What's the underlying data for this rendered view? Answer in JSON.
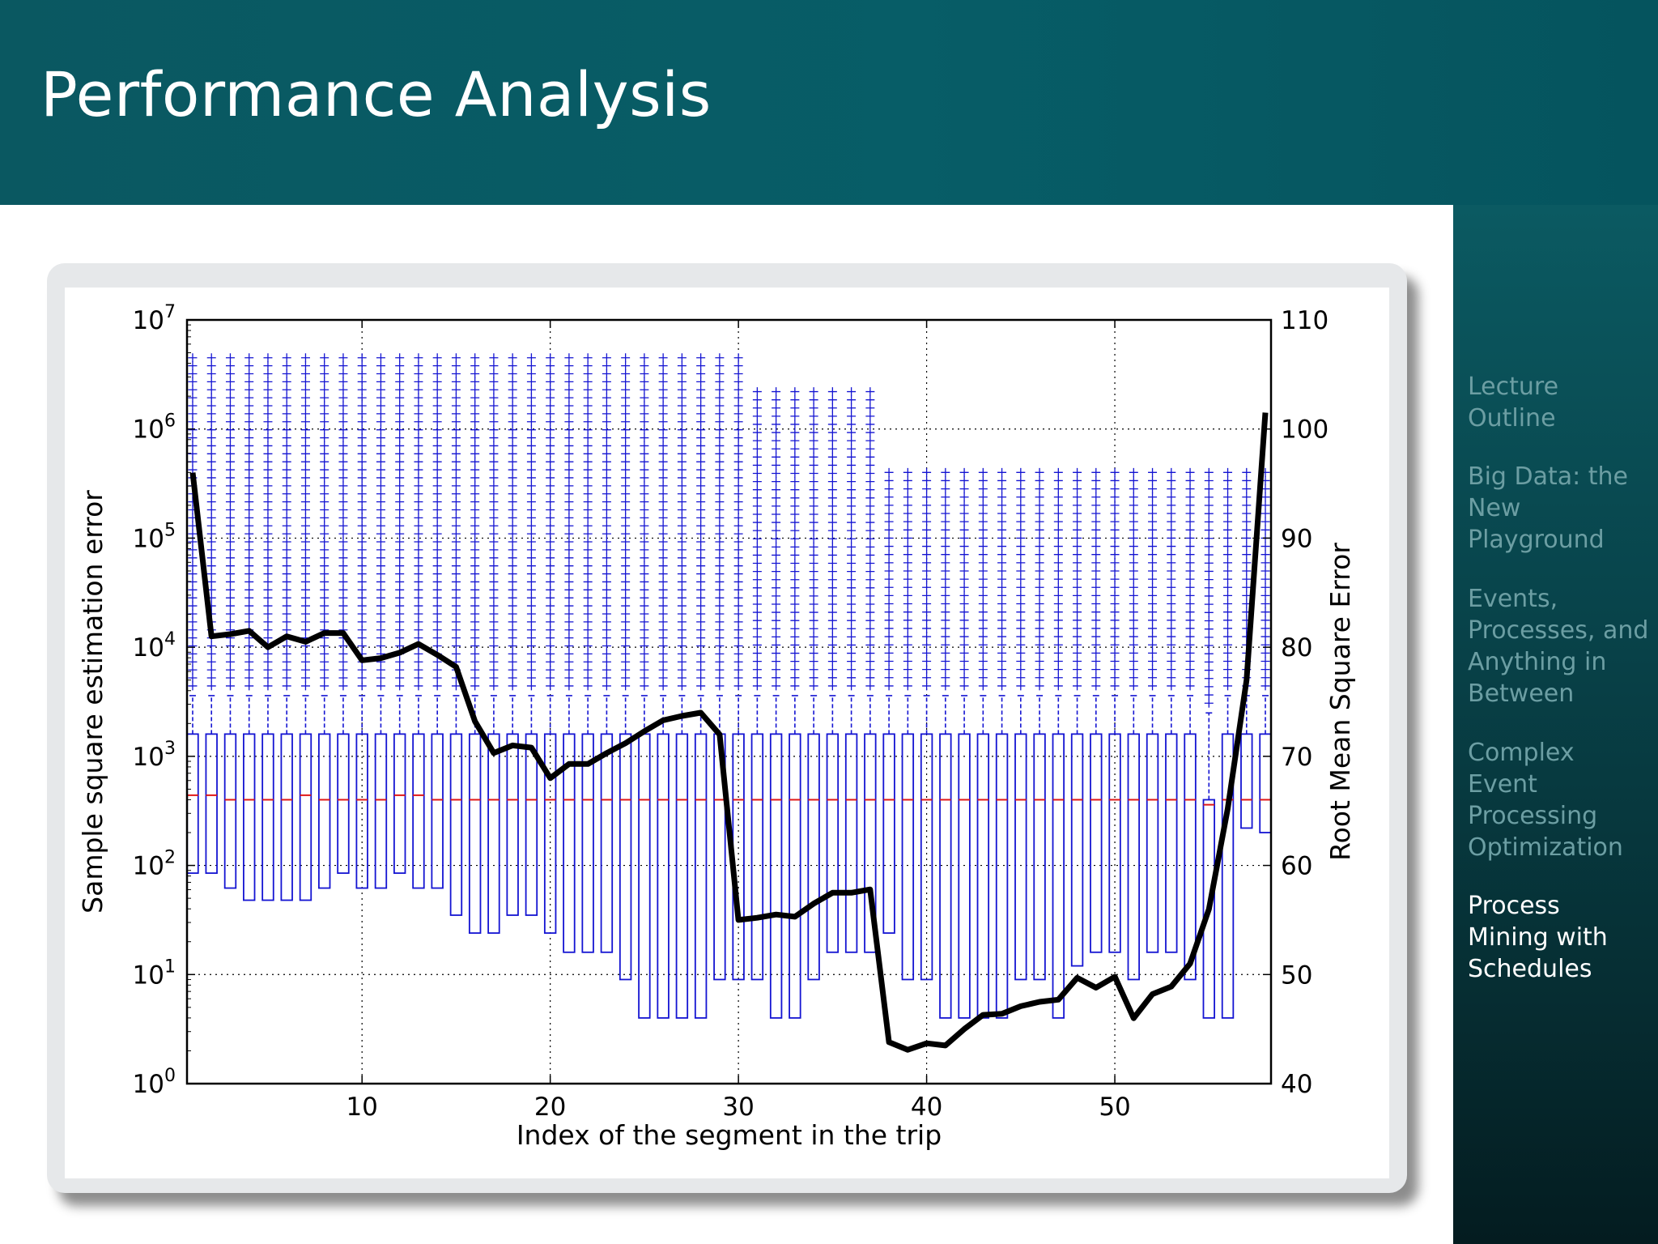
{
  "slide": {
    "title": "Performance Analysis"
  },
  "sidebar": {
    "items": [
      {
        "label": "Lecture\nOutline",
        "active": false
      },
      {
        "label": "Big Data: the\nNew\nPlayground",
        "active": false
      },
      {
        "label": "Events,\nProcesses, and\nAnything in\nBetween",
        "active": false
      },
      {
        "label": "Complex\nEvent\nProcessing\nOptimization",
        "active": false
      },
      {
        "label": "Process\nMining with\nSchedules",
        "active": true
      }
    ]
  },
  "colors": {
    "header": "#0a5861",
    "box": "#1414d2",
    "median": "#e01818",
    "rmse_line": "#000000"
  },
  "chart_data": {
    "type": "box",
    "xlabel": "Index of the segment in the trip",
    "ylabel_left": "Sample square estimation error",
    "ylabel_right": "Root Mean Square Error",
    "x_ticks": [
      10,
      20,
      30,
      40,
      50
    ],
    "xlim": [
      0.7,
      58.3
    ],
    "y_left_scale": "log",
    "y_left_lim": [
      1,
      10000000
    ],
    "y_left_ticks": [
      "10^0",
      "10^1",
      "10^2",
      "10^3",
      "10^4",
      "10^5",
      "10^6",
      "10^7"
    ],
    "y_right_lim": [
      40,
      110
    ],
    "y_right_ticks": [
      40,
      50,
      60,
      70,
      80,
      90,
      100,
      110
    ],
    "grid": true,
    "boxes": {
      "x": [
        1,
        2,
        3,
        4,
        5,
        6,
        7,
        8,
        9,
        10,
        11,
        12,
        13,
        14,
        15,
        16,
        17,
        18,
        19,
        20,
        21,
        22,
        23,
        24,
        25,
        26,
        27,
        28,
        29,
        30,
        31,
        32,
        33,
        34,
        35,
        36,
        37,
        38,
        39,
        40,
        41,
        42,
        43,
        44,
        45,
        46,
        47,
        48,
        49,
        50,
        51,
        52,
        53,
        54,
        55,
        56,
        57,
        58
      ],
      "q1": [
        85,
        85,
        62,
        48,
        48,
        48,
        48,
        62,
        85,
        62,
        62,
        85,
        62,
        62,
        35,
        24,
        24,
        35,
        35,
        24,
        16,
        16,
        16,
        9,
        4,
        4,
        4,
        4,
        9,
        9,
        9,
        4,
        4,
        9,
        16,
        16,
        16,
        24,
        9,
        9,
        4,
        4,
        4,
        4,
        9,
        9,
        4,
        12,
        16,
        16,
        9,
        16,
        16,
        9,
        4,
        4,
        220,
        200
      ],
      "median": [
        440,
        440,
        400,
        400,
        400,
        400,
        440,
        400,
        400,
        400,
        400,
        440,
        440,
        400,
        400,
        400,
        400,
        400,
        400,
        400,
        400,
        400,
        400,
        400,
        400,
        400,
        400,
        400,
        400,
        400,
        400,
        400,
        400,
        400,
        400,
        400,
        400,
        400,
        400,
        400,
        400,
        400,
        400,
        400,
        400,
        400,
        400,
        400,
        400,
        400,
        400,
        400,
        400,
        400,
        360,
        400,
        400,
        400
      ],
      "q3": [
        1600,
        1600,
        1600,
        1600,
        1600,
        1600,
        1600,
        1600,
        1600,
        1600,
        1600,
        1600,
        1600,
        1600,
        1600,
        1600,
        1600,
        1600,
        1600,
        1600,
        1600,
        1600,
        1600,
        1600,
        1600,
        1600,
        1600,
        1600,
        1600,
        1600,
        1600,
        1600,
        1600,
        1600,
        1600,
        1600,
        1600,
        1600,
        1600,
        1600,
        1600,
        1600,
        1600,
        1600,
        1600,
        1600,
        1600,
        1600,
        1600,
        1600,
        1600,
        1600,
        1600,
        1600,
        400,
        1600,
        1600,
        1600
      ],
      "whisker_low": [
        85,
        85,
        62,
        48,
        48,
        48,
        48,
        62,
        85,
        62,
        62,
        85,
        62,
        62,
        35,
        24,
        24,
        35,
        35,
        24,
        16,
        16,
        16,
        9,
        4,
        4,
        4,
        4,
        9,
        9,
        9,
        4,
        4,
        9,
        16,
        16,
        16,
        24,
        9,
        9,
        4,
        4,
        4,
        4,
        9,
        9,
        4,
        12,
        16,
        16,
        9,
        16,
        16,
        9,
        4,
        4,
        220,
        200
      ],
      "whisker_high": [
        3600,
        3600,
        3600,
        3600,
        3600,
        3600,
        3600,
        3600,
        3600,
        3600,
        3600,
        3600,
        3600,
        3600,
        3600,
        3600,
        3600,
        3600,
        3600,
        3600,
        3600,
        3600,
        3600,
        3600,
        3600,
        3600,
        3600,
        3600,
        3600,
        3600,
        3600,
        3600,
        3600,
        3600,
        3600,
        3600,
        3600,
        3600,
        3600,
        3600,
        3600,
        3600,
        3600,
        3600,
        3600,
        3600,
        3600,
        3600,
        3600,
        3600,
        3600,
        3600,
        3600,
        3600,
        2500,
        3600,
        3600,
        3600
      ],
      "outlier_max": [
        4500000,
        4500000,
        4500000,
        4500000,
        4500000,
        4500000,
        4500000,
        4500000,
        4500000,
        4500000,
        4500000,
        4500000,
        4500000,
        4500000,
        4500000,
        4500000,
        4500000,
        4500000,
        4500000,
        4500000,
        4500000,
        4500000,
        4500000,
        4500000,
        4500000,
        4500000,
        4500000,
        4500000,
        4500000,
        4500000,
        2200000,
        2200000,
        2200000,
        2200000,
        2200000,
        2200000,
        2200000,
        400000,
        400000,
        400000,
        400000,
        400000,
        400000,
        400000,
        400000,
        400000,
        400000,
        400000,
        400000,
        400000,
        400000,
        400000,
        400000,
        400000,
        400000,
        400000,
        400000,
        400000
      ]
    },
    "series": [
      {
        "name": "Root Mean Square Error",
        "axis": "right",
        "x": [
          1,
          2,
          3,
          4,
          5,
          6,
          7,
          8,
          9,
          10,
          11,
          12,
          13,
          14,
          15,
          16,
          17,
          18,
          19,
          20,
          21,
          22,
          23,
          24,
          25,
          26,
          27,
          28,
          29,
          30,
          31,
          32,
          33,
          34,
          35,
          36,
          37,
          38,
          39,
          40,
          41,
          42,
          43,
          44,
          45,
          46,
          47,
          48,
          49,
          50,
          51,
          52,
          53,
          54,
          55,
          56,
          57,
          58
        ],
        "y": [
          96,
          81,
          81.2,
          81.5,
          80,
          81,
          80.5,
          81.3,
          81.3,
          78.8,
          79,
          79.5,
          80.3,
          79.3,
          78.2,
          73.2,
          70.3,
          71,
          70.8,
          68,
          69.3,
          69.3,
          70.3,
          71.2,
          72.3,
          73.3,
          73.7,
          74,
          72,
          55,
          55.2,
          55.5,
          55.3,
          56.5,
          57.5,
          57.5,
          57.8,
          43.8,
          43.1,
          43.7,
          43.5,
          45,
          46.3,
          46.4,
          47.1,
          47.5,
          47.7,
          49.7,
          48.8,
          49.8,
          46,
          48.2,
          48.9,
          51,
          56,
          65.2,
          77,
          101.5
        ]
      }
    ]
  }
}
